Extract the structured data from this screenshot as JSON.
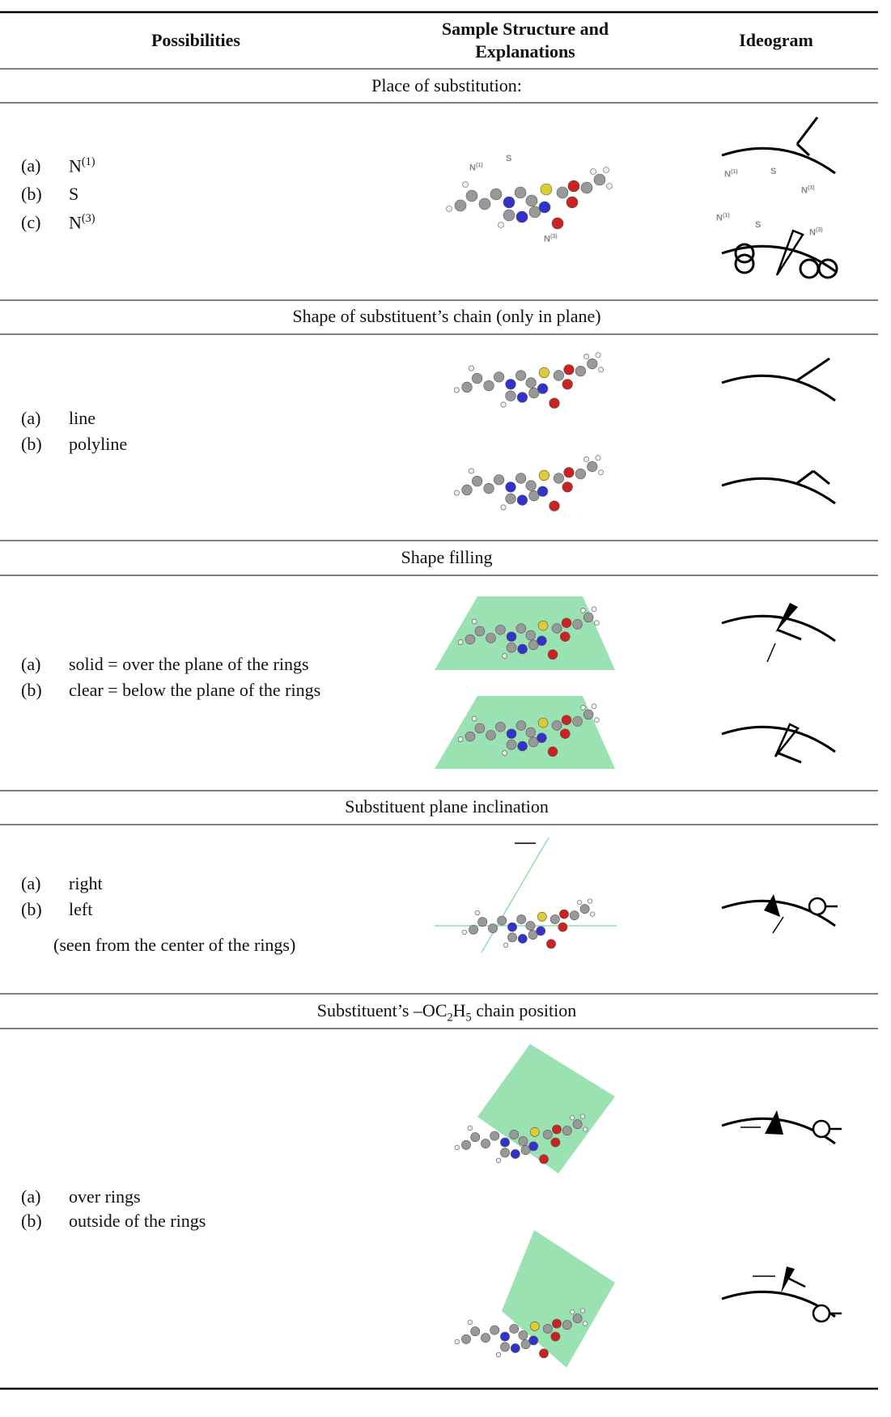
{
  "header": {
    "columns": [
      "Possibilities",
      "Sample Structure and Explanations",
      "Ideogram"
    ]
  },
  "sections": [
    {
      "title": [
        {
          "text": "Place of substitution:"
        }
      ],
      "items": [
        {
          "label": "(a)",
          "text": "N",
          "sup": "(1)"
        },
        {
          "label": "(b)",
          "text": "S"
        },
        {
          "label": "(c)",
          "text": "N",
          "sup": "(3)"
        }
      ],
      "figure_labels": [
        {
          "text": "N",
          "sup": "(1)"
        },
        {
          "text": "S"
        },
        {
          "text": "N",
          "sup": "(3)"
        }
      ]
    },
    {
      "title": [
        {
          "text": "Shape of substituent’s chain (only in plane)"
        }
      ],
      "items": [
        {
          "label": "(a)",
          "text": "line"
        },
        {
          "label": "(b)",
          "text": "polyline"
        }
      ]
    },
    {
      "title": [
        {
          "text": "Shape filling"
        }
      ],
      "items": [
        {
          "label": "(a)",
          "text": "solid = over the plane of the rings"
        },
        {
          "label": "(b)",
          "text": "clear = below the plane of the rings"
        }
      ]
    },
    {
      "title": [
        {
          "text": "Substituent plane inclination"
        }
      ],
      "items": [
        {
          "label": "(a)",
          "text": "right"
        },
        {
          "label": "(b)",
          "text": "left"
        }
      ],
      "note": "(seen from the center of the rings)"
    },
    {
      "title": [
        {
          "text": "Substituent’s –OC"
        },
        {
          "sub": "2"
        },
        {
          "text": "H"
        },
        {
          "sub": "5"
        },
        {
          "text": " chain position"
        }
      ],
      "items": [
        {
          "label": "(a)",
          "text": "over rings"
        },
        {
          "label": "(b)",
          "text": "outside of the rings"
        }
      ]
    }
  ]
}
